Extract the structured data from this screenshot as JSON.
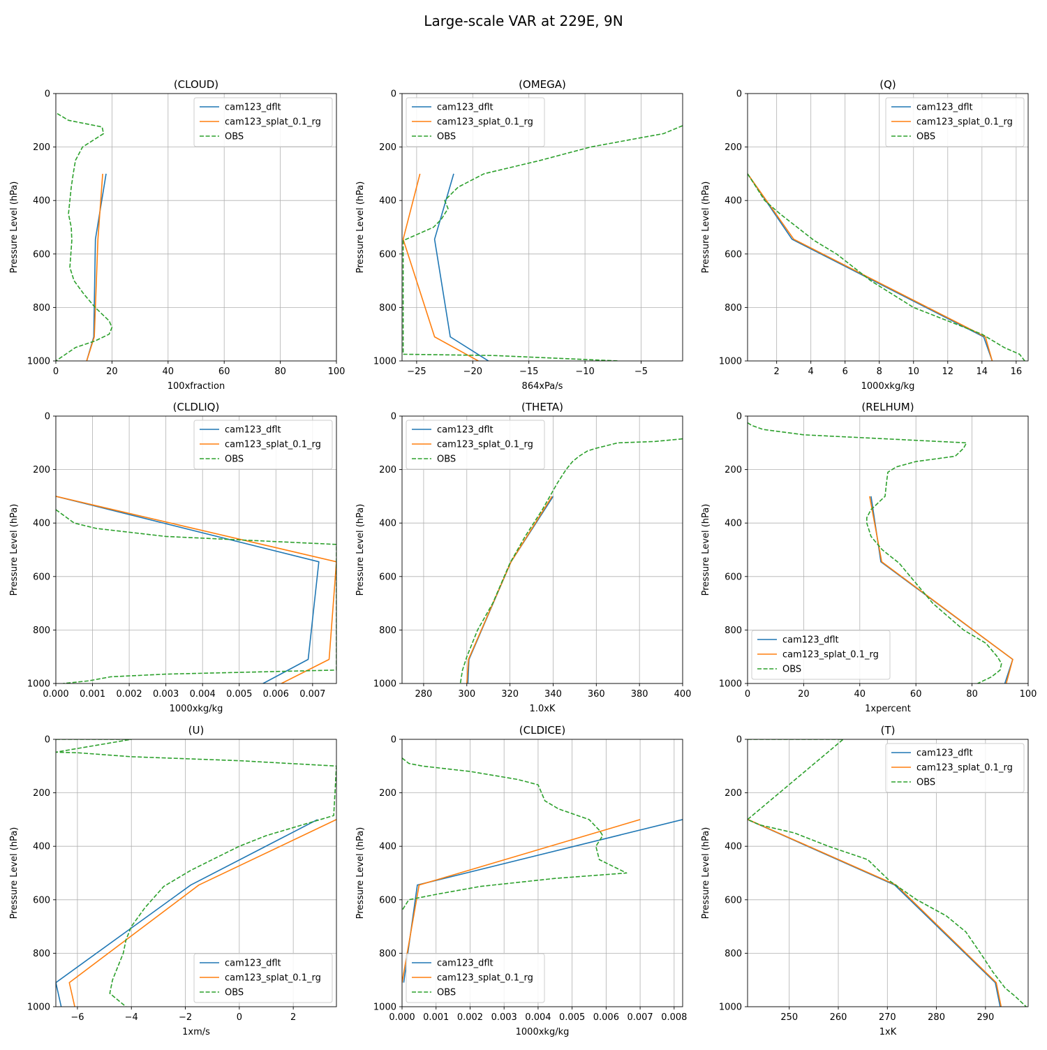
{
  "figure": {
    "title": "Large-scale VAR at 229E, 9N"
  },
  "colors": {
    "cam123_dflt": "#1f77b4",
    "cam123_splat_0.1_rg": "#ff7f0e",
    "OBS": "#2ca02c",
    "grid": "#b0b0b0"
  },
  "chart_data": [
    {
      "type": "line",
      "title": "(CLOUD)",
      "xlabel": "100xfraction",
      "ylabel": "Pressure Level (hPa)",
      "xlim": [
        0,
        100
      ],
      "ylim": [
        1000,
        0
      ],
      "grid": true,
      "legend": "upper-right",
      "xticks": [
        0,
        20,
        40,
        60,
        80,
        100
      ],
      "xtick_labels": [
        "0",
        "20",
        "40",
        "60",
        "80",
        "100"
      ],
      "yticks": [
        0,
        200,
        400,
        600,
        800,
        1000
      ],
      "ytick_labels": [
        "0",
        "200",
        "400",
        "600",
        "800",
        "1000"
      ],
      "series": [
        {
          "name": "cam123_dflt",
          "style": "solid",
          "x": [
            17.9,
            14.1,
            13.5,
            11.0
          ],
          "y": [
            300,
            545,
            910,
            1000
          ]
        },
        {
          "name": "cam123_splat_0.1_rg",
          "style": "solid",
          "x": [
            16.7,
            15.0,
            13.7,
            11.0
          ],
          "y": [
            300,
            545,
            910,
            1000
          ]
        },
        {
          "name": "OBS",
          "style": "dashed",
          "x": [
            0.5,
            4.5,
            16.5,
            17.0,
            15.5,
            9.5,
            7.0,
            6.2,
            5.5,
            4.5,
            5.5,
            5.7,
            5.0,
            6.5,
            10.0,
            14.0,
            19.0,
            20.0,
            19.0,
            14.0,
            7.0,
            3.5,
            0.0
          ],
          "y": [
            75,
            100,
            125,
            150,
            160,
            200,
            250,
            300,
            350,
            450,
            500,
            550,
            650,
            700,
            750,
            800,
            850,
            875,
            900,
            925,
            950,
            975,
            1000
          ]
        }
      ]
    },
    {
      "type": "line",
      "title": "(OMEGA)",
      "xlabel": "864xPa/s",
      "ylabel": "Pressure Level (hPa)",
      "xlim": [
        -26.3,
        -1.3
      ],
      "ylim": [
        1000,
        0
      ],
      "grid": true,
      "legend": "upper-left",
      "xticks": [
        -25,
        -20,
        -15,
        -10,
        -5
      ],
      "xtick_labels": [
        "−25",
        "−20",
        "−15",
        "−10",
        "−5"
      ],
      "yticks": [
        0,
        200,
        400,
        600,
        800,
        1000
      ],
      "ytick_labels": [
        "0",
        "200",
        "400",
        "600",
        "800",
        "1000"
      ],
      "series": [
        {
          "name": "cam123_dflt",
          "style": "solid",
          "x": [
            -21.7,
            -23.4,
            -22.0,
            -18.6
          ],
          "y": [
            300,
            545,
            910,
            1000
          ]
        },
        {
          "name": "cam123_splat_0.1_rg",
          "style": "solid",
          "x": [
            -24.7,
            -26.2,
            -23.4,
            -19.5
          ],
          "y": [
            300,
            545,
            910,
            1000
          ]
        },
        {
          "name": "OBS",
          "style": "dashed",
          "x": [
            -1.3,
            -3.0,
            -5.0,
            -9.5,
            -14.0,
            -19.0,
            -21.3,
            -22.5,
            -22.2,
            -22.8,
            -23.5,
            -26.2,
            -26.2,
            -18.0,
            -7.0
          ],
          "y": [
            120,
            150,
            165,
            200,
            250,
            300,
            350,
            400,
            430,
            470,
            500,
            550,
            975,
            980,
            1000
          ]
        }
      ]
    },
    {
      "type": "line",
      "title": "(Q)",
      "xlabel": "1000xkg/kg",
      "ylabel": "Pressure Level (hPa)",
      "xlim": [
        0.3,
        16.7
      ],
      "ylim": [
        1000,
        0
      ],
      "grid": true,
      "legend": "upper-right",
      "xticks": [
        2,
        4,
        6,
        8,
        10,
        12,
        14,
        16
      ],
      "xtick_labels": [
        "2",
        "4",
        "6",
        "8",
        "10",
        "12",
        "14",
        "16"
      ],
      "yticks": [
        0,
        200,
        400,
        600,
        800,
        1000
      ],
      "ytick_labels": [
        "0",
        "200",
        "400",
        "600",
        "800",
        "1000"
      ],
      "series": [
        {
          "name": "cam123_dflt",
          "style": "solid",
          "x": [
            0.3,
            2.9,
            14.1,
            14.6
          ],
          "y": [
            300,
            545,
            910,
            1000
          ]
        },
        {
          "name": "cam123_splat_0.1_rg",
          "style": "solid",
          "x": [
            0.3,
            3.0,
            14.2,
            14.6
          ],
          "y": [
            300,
            545,
            910,
            1000
          ]
        },
        {
          "name": "OBS",
          "style": "dashed",
          "x": [
            0.3,
            0.8,
            1.3,
            2.2,
            3.2,
            4.2,
            5.5,
            7.5,
            10.0,
            12.0,
            14.0,
            15.3,
            16.2,
            16.5
          ],
          "y": [
            300,
            350,
            400,
            450,
            500,
            550,
            600,
            700,
            800,
            850,
            900,
            950,
            975,
            1000
          ]
        }
      ]
    },
    {
      "type": "line",
      "title": "(CLDLIQ)",
      "xlabel": "1000xkg/kg",
      "ylabel": "Pressure Level (hPa)",
      "xlim": [
        0,
        0.00765
      ],
      "ylim": [
        1000,
        0
      ],
      "grid": true,
      "legend": "upper-right",
      "xticks": [
        0,
        0.001,
        0.002,
        0.003,
        0.004,
        0.005,
        0.006,
        0.007
      ],
      "xtick_labels": [
        "0.000",
        "0.001",
        "0.002",
        "0.003",
        "0.004",
        "0.005",
        "0.006",
        "0.007"
      ],
      "yticks": [
        0,
        200,
        400,
        600,
        800,
        1000
      ],
      "ytick_labels": [
        "0",
        "200",
        "400",
        "600",
        "800",
        "1000"
      ],
      "series": [
        {
          "name": "cam123_dflt",
          "style": "solid",
          "x": [
            0.0,
            0.00717,
            0.00688,
            0.00565
          ],
          "y": [
            300,
            545,
            910,
            1000
          ]
        },
        {
          "name": "cam123_splat_0.1_rg",
          "style": "solid",
          "x": [
            0.0,
            0.00765,
            0.00745,
            0.00615
          ],
          "y": [
            300,
            545,
            910,
            1000
          ]
        },
        {
          "name": "OBS",
          "style": "dashed",
          "x": [
            0.0,
            0.0002,
            0.0005,
            0.0011,
            0.003,
            0.00765,
            0.00765,
            0.003,
            0.0015,
            0.0009,
            0.0002
          ],
          "y": [
            350,
            370,
            400,
            420,
            450,
            480,
            950,
            965,
            975,
            990,
            1000
          ]
        }
      ]
    },
    {
      "type": "line",
      "title": "(THETA)",
      "xlabel": "1.0xK",
      "ylabel": "Pressure Level (hPa)",
      "xlim": [
        270,
        400
      ],
      "ylim": [
        1000,
        0
      ],
      "grid": true,
      "legend": "upper-left",
      "xticks": [
        280,
        300,
        320,
        340,
        360,
        380,
        400
      ],
      "xtick_labels": [
        "280",
        "300",
        "320",
        "340",
        "360",
        "380",
        "400"
      ],
      "yticks": [
        0,
        200,
        400,
        600,
        800,
        1000
      ],
      "ytick_labels": [
        "0",
        "200",
        "400",
        "600",
        "800",
        "1000"
      ],
      "series": [
        {
          "name": "cam123_dflt",
          "style": "solid",
          "x": [
            340.0,
            320.5,
            301.0,
            300.5
          ],
          "y": [
            300,
            545,
            910,
            1000
          ]
        },
        {
          "name": "cam123_splat_0.1_rg",
          "style": "solid",
          "x": [
            339.5,
            320.5,
            300.8,
            300.0
          ],
          "y": [
            300,
            545,
            910,
            1000
          ]
        },
        {
          "name": "OBS",
          "style": "dashed",
          "x": [
            400.0,
            387.0,
            370.0,
            360.0,
            356.0,
            352.0,
            349.0,
            346.0,
            344.0,
            342.0,
            335.0,
            327.0,
            320.0,
            312.0,
            305.0,
            300.0,
            298.0,
            297.0
          ],
          "y": [
            85,
            95,
            100,
            120,
            130,
            150,
            170,
            200,
            225,
            250,
            350,
            450,
            550,
            700,
            800,
            900,
            950,
            1000
          ]
        }
      ]
    },
    {
      "type": "line",
      "title": "(RELHUM)",
      "xlabel": "1xpercent",
      "ylabel": "Pressure Level (hPa)",
      "xlim": [
        0,
        100
      ],
      "ylim": [
        1000,
        0
      ],
      "grid": true,
      "legend": "lower-left",
      "xticks": [
        0,
        20,
        40,
        60,
        80,
        100
      ],
      "xtick_labels": [
        "0",
        "20",
        "40",
        "60",
        "80",
        "100"
      ],
      "yticks": [
        0,
        200,
        400,
        600,
        800,
        1000
      ],
      "ytick_labels": [
        "0",
        "200",
        "400",
        "600",
        "800",
        "1000"
      ],
      "series": [
        {
          "name": "cam123_dflt",
          "style": "solid",
          "x": [
            44.0,
            47.5,
            94.5,
            91.7
          ],
          "y": [
            300,
            545,
            910,
            1000
          ]
        },
        {
          "name": "cam123_splat_0.1_rg",
          "style": "solid",
          "x": [
            43.5,
            47.8,
            94.5,
            92.2
          ],
          "y": [
            300,
            545,
            910,
            1000
          ]
        },
        {
          "name": "OBS",
          "style": "dashed",
          "x": [
            0.0,
            1.5,
            5.5,
            20.0,
            78.0,
            77.0,
            74.0,
            60.0,
            53.0,
            50.0,
            49.5,
            49.0,
            44.0,
            42.5,
            42.5,
            44.0,
            48.0,
            54.0,
            58.0,
            66.0,
            77.0,
            85.0,
            89.0,
            90.5,
            90.0,
            87.0,
            82.0
          ],
          "y": [
            25,
            35,
            50,
            70,
            100,
            120,
            150,
            170,
            190,
            210,
            250,
            300,
            350,
            380,
            400,
            450,
            500,
            550,
            600,
            700,
            800,
            850,
            900,
            925,
            950,
            975,
            1000
          ]
        }
      ]
    },
    {
      "type": "line",
      "title": "(U)",
      "xlabel": "1xm/s",
      "ylabel": "Pressure Level (hPa)",
      "xlim": [
        -6.8,
        3.6
      ],
      "ylim": [
        1000,
        0
      ],
      "grid": true,
      "legend": "lower-right",
      "xticks": [
        -6,
        -4,
        -2,
        0,
        2
      ],
      "xtick_labels": [
        "−6",
        "−4",
        "−2",
        "0",
        "2"
      ],
      "yticks": [
        0,
        200,
        400,
        600,
        800,
        1000
      ],
      "ytick_labels": [
        "0",
        "200",
        "400",
        "600",
        "800",
        "1000"
      ],
      "series": [
        {
          "name": "cam123_dflt",
          "style": "solid",
          "x": [
            2.9,
            -1.8,
            -6.8,
            -6.6
          ],
          "y": [
            300,
            545,
            910,
            1000
          ]
        },
        {
          "name": "cam123_splat_0.1_rg",
          "style": "solid",
          "x": [
            3.6,
            -1.5,
            -6.3,
            -6.1
          ],
          "y": [
            300,
            545,
            910,
            1000
          ]
        },
        {
          "name": "OBS",
          "style": "dashed",
          "x": [
            -6.8,
            -4.0,
            -6.8,
            -6.0,
            -4.0,
            0.0,
            3.6,
            3.5,
            2.0,
            1.0,
            0.0,
            -1.0,
            -1.8,
            -2.8,
            -3.5,
            -4.0,
            -4.2,
            -4.3,
            -4.5,
            -4.7,
            -4.8,
            -4.5,
            -4.2
          ],
          "y": [
            0,
            0,
            48,
            50,
            65,
            80,
            100,
            285,
            330,
            360,
            400,
            450,
            490,
            550,
            630,
            700,
            750,
            800,
            850,
            900,
            950,
            975,
            1000
          ]
        }
      ]
    },
    {
      "type": "line",
      "title": "(CLDICE)",
      "xlabel": "1000xkg/kg",
      "ylabel": "Pressure Level (hPa)",
      "xlim": [
        0,
        0.00825
      ],
      "ylim": [
        1000,
        0
      ],
      "grid": true,
      "legend": "lower-left",
      "xticks": [
        0,
        0.001,
        0.002,
        0.003,
        0.004,
        0.005,
        0.006,
        0.007,
        0.008
      ],
      "xtick_labels": [
        "0.000",
        "0.001",
        "0.002",
        "0.003",
        "0.004",
        "0.005",
        "0.006",
        "0.007",
        "0.008"
      ],
      "yticks": [
        0,
        200,
        400,
        600,
        800,
        1000
      ],
      "ytick_labels": [
        "0",
        "200",
        "400",
        "600",
        "800",
        "1000"
      ],
      "series": [
        {
          "name": "cam123_dflt",
          "style": "solid",
          "x": [
            0.00825,
            0.00045,
            5e-05
          ],
          "y": [
            300,
            545,
            910
          ]
        },
        {
          "name": "cam123_splat_0.1_rg",
          "style": "solid",
          "x": [
            0.007,
            0.0005,
            0.0
          ],
          "y": [
            300,
            545,
            910
          ]
        },
        {
          "name": "OBS",
          "style": "dashed",
          "x": [
            0.0,
            0.0002,
            0.0006,
            0.002,
            0.0034,
            0.004,
            0.0041,
            0.0042,
            0.0046,
            0.0055,
            0.0058,
            0.0059,
            0.0057,
            0.0058,
            0.0066,
            0.0045,
            0.0023,
            0.001,
            0.0002,
            0.0
          ],
          "y": [
            70,
            90,
            100,
            120,
            150,
            170,
            200,
            230,
            260,
            300,
            340,
            360,
            400,
            450,
            500,
            520,
            550,
            580,
            600,
            640
          ]
        }
      ]
    },
    {
      "type": "line",
      "title": "(T)",
      "xlabel": "1xK",
      "ylabel": "Pressure Level (hPa)",
      "xlim": [
        241.5,
        298.7
      ],
      "ylim": [
        1000,
        0
      ],
      "grid": true,
      "legend": "upper-right",
      "xticks": [
        250,
        260,
        270,
        280,
        290
      ],
      "xtick_labels": [
        "250",
        "260",
        "270",
        "280",
        "290"
      ],
      "yticks": [
        0,
        200,
        400,
        600,
        800,
        1000
      ],
      "ytick_labels": [
        "0",
        "200",
        "400",
        "600",
        "800",
        "1000"
      ],
      "series": [
        {
          "name": "cam123_dflt",
          "style": "solid",
          "x": [
            241.5,
            271.5,
            292.0,
            293.0
          ],
          "y": [
            300,
            545,
            910,
            1000
          ]
        },
        {
          "name": "cam123_splat_0.1_rg",
          "style": "solid",
          "x": [
            241.6,
            271.8,
            292.2,
            293.2
          ],
          "y": [
            300,
            545,
            910,
            1000
          ]
        },
        {
          "name": "OBS",
          "style": "dashed",
          "x": [
            241.5,
            261.0,
            241.5,
            244.0,
            251.0,
            258.0,
            266.0,
            270.5,
            276.0,
            282.0,
            286.0,
            289.0,
            291.5,
            294.0,
            296.0,
            298.3
          ],
          "y": [
            0,
            0,
            300,
            320,
            350,
            400,
            450,
            530,
            600,
            660,
            720,
            800,
            870,
            930,
            960,
            1000
          ]
        }
      ]
    }
  ]
}
